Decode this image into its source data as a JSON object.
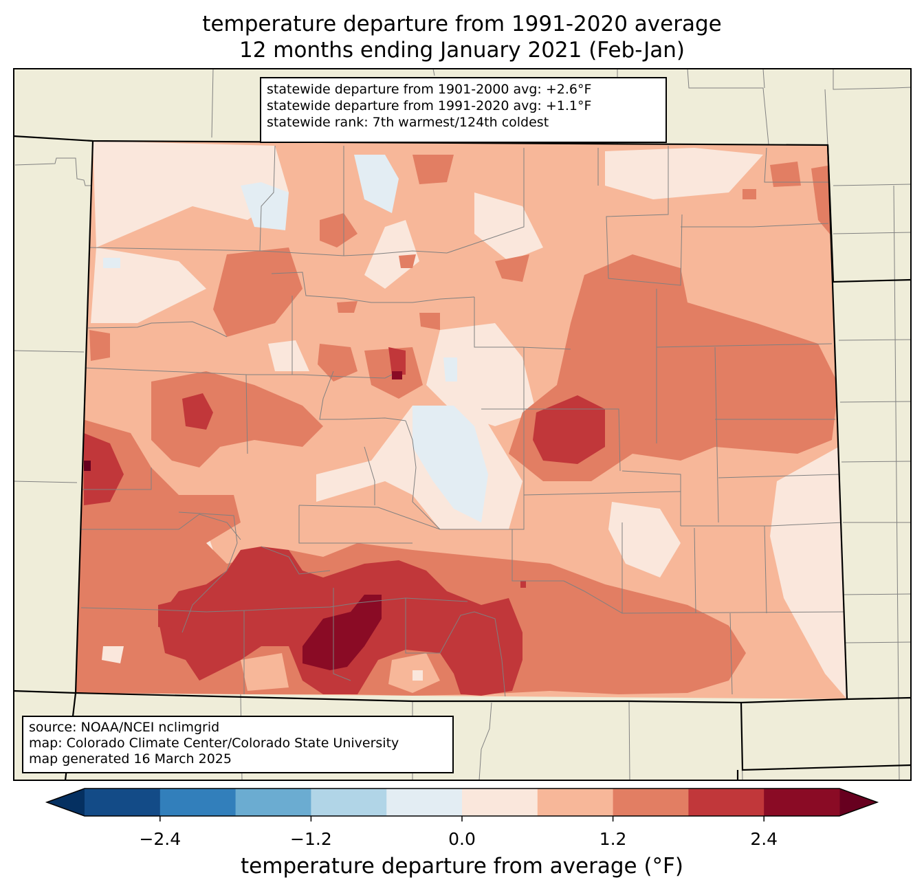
{
  "title": {
    "line1": "temperature departure from 1991-2020 average",
    "line2": "12 months ending January 2021 (Feb-Jan)"
  },
  "stats": {
    "line1": "statewide departure from 1901-2000 avg: +2.6°F",
    "line2": "statewide departure from 1991-2020 avg: +1.1°F",
    "line3": "statewide rank: 7th warmest/124th coldest"
  },
  "source": {
    "line1": "source: NOAA/NCEI nclimgrid",
    "line2": "map: Colorado Climate Center/Colorado State University",
    "line3": "map generated 16 March 2025"
  },
  "colorbar": {
    "label": "temperature departure from average (°F)",
    "ticks": [
      "−2.4",
      "−1.2",
      "0.0",
      "1.2",
      "2.4"
    ],
    "bounds": [
      -3.0,
      -2.4,
      -1.8,
      -1.2,
      -0.6,
      0.0,
      0.6,
      1.2,
      1.8,
      2.4,
      3.0
    ],
    "colors": [
      "#134b87",
      "#327fbb",
      "#6bacd1",
      "#b1d5e7",
      "#e3edf3",
      "#fae7dc",
      "#f7b799",
      "#e27e63",
      "#c1373a",
      "#8a0b25"
    ],
    "under_color": "#053061",
    "over_color": "#67001f"
  },
  "map_colors": {
    "background": "#efedd9",
    "county_lines": "#808080",
    "state_lines": "#000000"
  }
}
